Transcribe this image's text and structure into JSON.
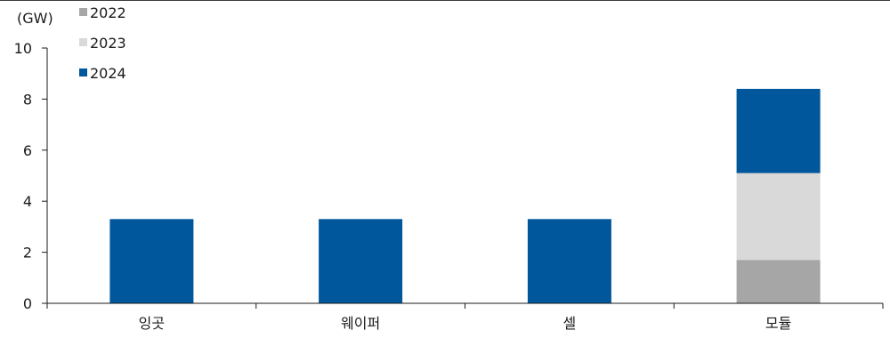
{
  "chart_data": {
    "type": "bar",
    "stacked": true,
    "unit_label": "(GW)",
    "categories": [
      "잉곳",
      "웨이퍼",
      "셀",
      "모듈"
    ],
    "series": [
      {
        "name": "2022",
        "color": "#a6a6a6",
        "values": [
          0,
          0,
          0,
          1.7
        ]
      },
      {
        "name": "2023",
        "color": "#d9d9d9",
        "values": [
          0,
          0,
          0,
          3.4
        ]
      },
      {
        "name": "2024",
        "color": "#00579c",
        "values": [
          3.3,
          3.3,
          3.3,
          3.3
        ]
      }
    ],
    "ylim": [
      0,
      10
    ],
    "yticks": [
      "0",
      "2",
      "4",
      "6",
      "8",
      "10"
    ],
    "legend_position": "top-left",
    "grid": false
  }
}
